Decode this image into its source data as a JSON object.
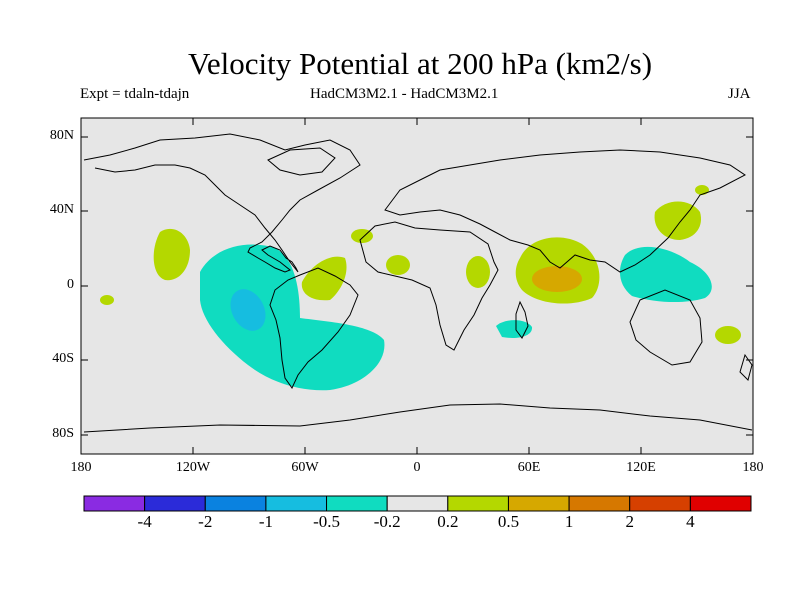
{
  "title": "Velocity Potential at 200 hPa (km2/s)",
  "subtitle_left": "Expt = tdaln-tdajn",
  "subtitle_center": "HadCM3M2.1 - HadCM3M2.1",
  "subtitle_right": "JJA",
  "lat_ticks": [
    "80N",
    "40N",
    "0",
    "40S",
    "80S"
  ],
  "lon_ticks": [
    "180",
    "120W",
    "60W",
    "0",
    "60E",
    "120E",
    "180"
  ],
  "colorbar": {
    "colors": [
      "#8a2be2",
      "#2b2bd9",
      "#0a82e0",
      "#16bde0",
      "#10dcc0",
      "#e6e6e6",
      "#b4d800",
      "#d6a800",
      "#d67800",
      "#d64000",
      "#e00000"
    ],
    "labels": [
      "-4",
      "-2",
      "-1",
      "-0.5",
      "-0.2",
      "0.2",
      "0.5",
      "1",
      "2",
      "4"
    ]
  },
  "map": {
    "background": "#e6e6e6",
    "lon_range": [
      -180,
      180
    ],
    "lat_range": [
      -90,
      90
    ]
  }
}
